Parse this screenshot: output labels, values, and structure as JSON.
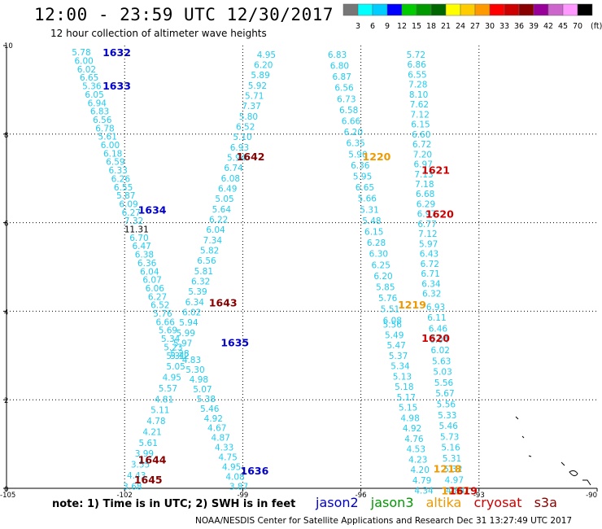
{
  "title": "12:00 - 23:59 UTC 12/30/2017",
  "subtitle": "12 hour collection of altimeter wave heights",
  "note": "note:  1) Time is in UTC;  2) SWH is in feet",
  "footer": "NOAA/NESDIS Center for Satellite Applications and Research     Dec 31 13:27:49 UTC 2017",
  "satellites": [
    {
      "name": "jason2",
      "color": "#0000cc"
    },
    {
      "name": "jason3",
      "color": "#009900"
    },
    {
      "name": "altika",
      "color": "#ee9900"
    },
    {
      "name": "cryosat",
      "color": "#cc0000"
    },
    {
      "name": "s3a",
      "color": "#880000"
    }
  ],
  "colorbar": {
    "ticks": [
      "3",
      "6",
      "9",
      "12",
      "15",
      "18",
      "21",
      "24",
      "27",
      "30",
      "33",
      "36",
      "39",
      "42",
      "45",
      "70"
    ],
    "unit": "(ft)",
    "colors": [
      "#777777",
      "#00ffff",
      "#00ccff",
      "#0000ff",
      "#00cc00",
      "#009900",
      "#006600",
      "#ffff00",
      "#ffcc00",
      "#ff9900",
      "#ff0000",
      "#cc0000",
      "#880000",
      "#990099",
      "#cc66cc",
      "#ff99ff",
      "#000000"
    ]
  },
  "chart_data": {
    "type": "scatter",
    "xlim": [
      -105,
      -90
    ],
    "ylim": [
      0,
      10
    ],
    "x_ticks": [
      "-105",
      "-102",
      "-99",
      "-96",
      "-93",
      "-90"
    ],
    "y_ticks": [
      "0",
      "2",
      "4",
      "6",
      "8",
      "10"
    ],
    "grid": true,
    "track_labels": [
      {
        "text": "1632",
        "x": -102.2,
        "y": 9.85,
        "color": "#0000cc"
      },
      {
        "text": "1633",
        "x": -102.2,
        "y": 9.1,
        "color": "#0000cc"
      },
      {
        "text": "1634",
        "x": -101.3,
        "y": 6.3,
        "color": "#0000cc"
      },
      {
        "text": "1635",
        "x": -99.2,
        "y": 3.3,
        "color": "#0000cc"
      },
      {
        "text": "1636",
        "x": -98.7,
        "y": 0.4,
        "color": "#0000cc"
      },
      {
        "text": "1642",
        "x": -98.8,
        "y": 7.5,
        "color": "#880000"
      },
      {
        "text": "1643",
        "x": -99.5,
        "y": 4.2,
        "color": "#880000"
      },
      {
        "text": "1644",
        "x": -101.3,
        "y": 0.65,
        "color": "#880000"
      },
      {
        "text": "1645",
        "x": -101.4,
        "y": 0.2,
        "color": "#880000"
      },
      {
        "text": "1220",
        "x": -95.6,
        "y": 7.5,
        "color": "#ee9900"
      },
      {
        "text": "1219",
        "x": -94.7,
        "y": 4.15,
        "color": "#ee9900"
      },
      {
        "text": "1218",
        "x": -93.8,
        "y": 0.45,
        "color": "#ee9900"
      },
      {
        "text": "1217",
        "x": -93.6,
        "y": -0.05,
        "color": "#ee9900"
      },
      {
        "text": "1621",
        "x": -94.1,
        "y": 7.2,
        "color": "#cc0000"
      },
      {
        "text": "1620",
        "x": -94.0,
        "y": 6.2,
        "color": "#cc0000"
      },
      {
        "text": "1620",
        "x": -94.1,
        "y": 3.4,
        "color": "#cc0000"
      },
      {
        "text": "1619",
        "x": -93.4,
        "y": -0.05,
        "color": "#cc0000"
      }
    ],
    "tracks": [
      {
        "name": "jason2 1632/1633",
        "color": "#22ccee",
        "x_start": -103.1,
        "x_end": -100.7,
        "y_start": 9.85,
        "y_end": 3.0,
        "values": [
          "5.78",
          "6.00",
          "6.02",
          "6.65",
          "5.36",
          "6.05",
          "6.94",
          "6.83",
          "6.56",
          "6.78",
          "5.61",
          "6.00",
          "6.18",
          "6.59",
          "6.33",
          "6.26",
          "6.55",
          "5.87",
          "6.09",
          "6.27",
          "7.32",
          "11.31",
          "6.70",
          "6.47",
          "6.38",
          "6.36",
          "6.04",
          "6.07",
          "6.06",
          "6.27",
          "6.52",
          "5.76",
          "6.66",
          "5.69",
          "5.34",
          "5.23",
          "5.31"
        ]
      },
      {
        "name": "jason2 1635/1636",
        "color": "#22ccee",
        "x_start": -100.6,
        "x_end": -101.8,
        "y_start": 3.0,
        "y_end": 0.05,
        "values": [
          "5.12",
          "5.05",
          "4.95",
          "5.57",
          "4.81",
          "5.11",
          "4.78",
          "4.21",
          "5.61",
          "3.99",
          "3.55",
          "4.43",
          "3.68"
        ]
      },
      {
        "name": "s3a 1642/1643",
        "color": "#22ccee",
        "x_start": -98.4,
        "x_end": -100.6,
        "y_start": 9.8,
        "y_end": 3.05,
        "values": [
          "4.95",
          "6.20",
          "5.89",
          "5.92",
          "5.71",
          "7.37",
          "5.80",
          "6.52",
          "5.10",
          "6.93",
          "5.94",
          "6.74",
          "6.08",
          "6.49",
          "5.05",
          "5.64",
          "6.22",
          "6.04",
          "7.34",
          "5.82",
          "6.56",
          "5.81",
          "6.32",
          "5.39",
          "6.34",
          "6.02",
          "5.94",
          "5.99",
          "5.97",
          "5.28"
        ]
      },
      {
        "name": "s3a 1644/1645",
        "color": "#22ccee",
        "x_start": -100.3,
        "x_end": -99.1,
        "y_start": 2.9,
        "y_end": 0.05,
        "values": [
          "4.83",
          "5.30",
          "4.98",
          "5.07",
          "5.38",
          "5.46",
          "4.92",
          "4.67",
          "4.87",
          "4.33",
          "4.75",
          "4.95",
          "4.08",
          "3.87"
        ]
      },
      {
        "name": "altika 1220/1219",
        "color": "#22ccee",
        "x_start": -96.6,
        "x_end": -95.2,
        "y_start": 9.8,
        "y_end": 3.8,
        "values": [
          "6.83",
          "6.80",
          "6.87",
          "6.56",
          "6.73",
          "6.58",
          "6.66",
          "6.20",
          "6.35",
          "5.90",
          "6.36",
          "5.95",
          "6.65",
          "5.66",
          "5.31",
          "5.48",
          "6.15",
          "6.28",
          "6.30",
          "6.25",
          "6.20",
          "5.85",
          "5.76",
          "5.51",
          "6.08"
        ]
      },
      {
        "name": "altika 1218",
        "color": "#22ccee",
        "x_start": -95.2,
        "x_end": -94.4,
        "y_start": 3.7,
        "y_end": -0.05,
        "values": [
          "5.56",
          "5.49",
          "5.47",
          "5.37",
          "5.34",
          "5.13",
          "5.18",
          "5.17",
          "5.15",
          "4.98",
          "4.92",
          "4.76",
          "4.53",
          "4.23",
          "4.20",
          "4.79",
          "4.34"
        ]
      },
      {
        "name": "cryosat 1621/1620",
        "color": "#22ccee",
        "x_start": -94.6,
        "x_end": -94.2,
        "y_start": 9.8,
        "y_end": 4.4,
        "values": [
          "5.72",
          "6.86",
          "6.55",
          "7.28",
          "8.10",
          "7.62",
          "7.12",
          "6.15",
          "6.60",
          "6.72",
          "7.20",
          "6.97",
          "7.13",
          "7.18",
          "6.68",
          "6.29",
          "6.97",
          "6.77",
          "7.12",
          "5.97",
          "6.43",
          "6.72",
          "6.71",
          "6.34",
          "6.32"
        ]
      },
      {
        "name": "cryosat 1619",
        "color": "#22ccee",
        "x_start": -94.1,
        "x_end": -93.6,
        "y_start": 4.1,
        "y_end": -0.05,
        "values": [
          "6.93",
          "6.11",
          "6.46",
          "6.04",
          "6.02",
          "5.63",
          "5.03",
          "5.56",
          "5.67",
          "5.56",
          "5.33",
          "5.46",
          "5.73",
          "5.16",
          "5.31",
          "5.32",
          "4.97",
          "4.84"
        ]
      }
    ]
  }
}
